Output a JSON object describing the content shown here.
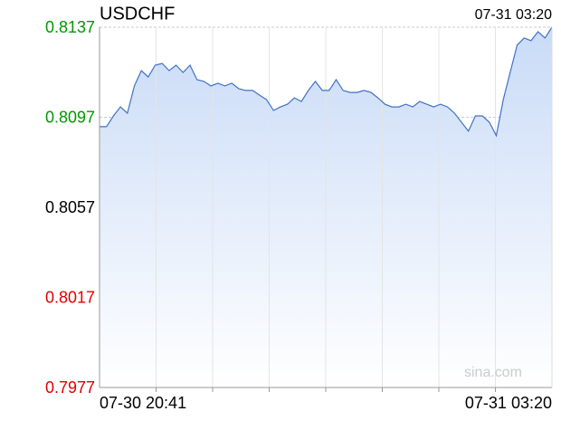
{
  "chart_data": {
    "type": "line",
    "title": "USDCHF",
    "timestamp": "07-31 03:20",
    "watermark": "sina.com",
    "categories": [
      "07-30 20:41",
      null,
      null,
      null,
      null,
      null,
      null,
      null,
      null,
      null,
      null,
      null,
      null,
      null,
      null,
      null,
      null,
      null,
      null,
      null,
      null,
      null,
      null,
      null,
      null,
      null,
      null,
      null,
      null,
      null,
      null,
      null,
      null,
      null,
      null,
      null,
      null,
      null,
      null,
      null,
      null,
      null,
      null,
      null,
      null,
      null,
      null,
      null,
      null,
      null,
      null,
      null,
      null,
      null,
      null,
      null,
      null,
      null,
      null,
      null,
      null,
      null,
      null,
      null,
      null,
      "07-31 03:20"
    ],
    "values": [
      0.80928,
      0.80928,
      0.80976,
      0.81016,
      0.80988,
      0.81109,
      0.81177,
      0.81149,
      0.81201,
      0.81209,
      0.81177,
      0.81201,
      0.81169,
      0.81201,
      0.81137,
      0.81129,
      0.81109,
      0.81121,
      0.81109,
      0.81121,
      0.81097,
      0.81089,
      0.81089,
      0.81068,
      0.81048,
      0.81,
      0.81016,
      0.81028,
      0.81056,
      0.8104,
      0.81089,
      0.81129,
      0.81089,
      0.81089,
      0.81137,
      0.81089,
      0.8108,
      0.8108,
      0.81089,
      0.8108,
      0.81056,
      0.81028,
      0.81016,
      0.81016,
      0.81028,
      0.81016,
      0.8104,
      0.81028,
      0.81016,
      0.81028,
      0.81016,
      0.80988,
      0.80948,
      0.80908,
      0.80976,
      0.80976,
      0.80948,
      0.80888,
      0.81048,
      0.81169,
      0.8129,
      0.81322,
      0.8131,
      0.8135,
      0.81322,
      0.8137
    ],
    "color": "#3f72c6",
    "ylim": [
      0.7977,
      0.8137
    ],
    "yticks": [
      0.7977,
      0.8017,
      0.8057,
      0.8097,
      0.8137
    ],
    "ytick_colors": [
      "#e00000",
      "#e00000",
      "#000000",
      "#009900",
      "#009900"
    ],
    "grid": true
  }
}
